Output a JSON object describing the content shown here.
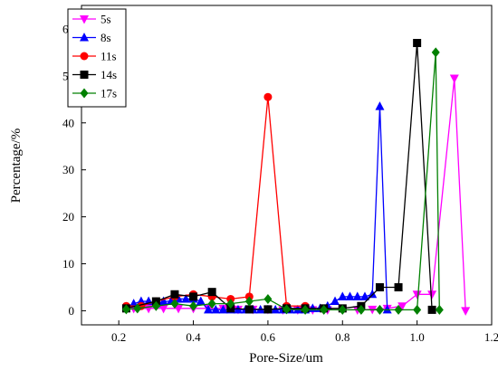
{
  "chart_data": {
    "type": "line",
    "xlabel": "Pore-Size/um",
    "ylabel": "Percentage/%",
    "xlim": [
      0.1,
      1.2
    ],
    "ylim": [
      -3,
      65
    ],
    "xticks": [
      0.2,
      0.4,
      0.6,
      0.8,
      1.0,
      1.2
    ],
    "xtick_labels": [
      "0.2",
      "0.4",
      "0.6",
      "0.8",
      "1.0",
      "1.2"
    ],
    "yticks": [
      0,
      10,
      20,
      30,
      40,
      50,
      60
    ],
    "ytick_labels": [
      "0",
      "10",
      "20",
      "30",
      "40",
      "50",
      "60"
    ],
    "grid": false,
    "legend_position": "top-left",
    "series": [
      {
        "name": "5s",
        "color": "#ff00ff",
        "marker": "triangle-down",
        "x": [
          0.24,
          0.28,
          0.32,
          0.36,
          0.4,
          0.44,
          0.48,
          0.52,
          0.56,
          0.6,
          0.64,
          0.68,
          0.72,
          0.76,
          0.8,
          0.84,
          0.88,
          0.92,
          0.96,
          1.0,
          1.04,
          1.1,
          1.13
        ],
        "y": [
          0.5,
          0.5,
          0.5,
          0.5,
          0.5,
          0.5,
          0.5,
          0.3,
          0.3,
          0.3,
          0.2,
          0.2,
          0.2,
          0.2,
          0.2,
          0.2,
          0.3,
          0.5,
          1.0,
          3.5,
          3.5,
          49.5,
          0
        ]
      },
      {
        "name": "8s",
        "color": "#0000ff",
        "marker": "triangle-up",
        "x": [
          0.24,
          0.26,
          0.28,
          0.3,
          0.32,
          0.34,
          0.36,
          0.38,
          0.4,
          0.42,
          0.44,
          0.46,
          0.48,
          0.5,
          0.52,
          0.54,
          0.56,
          0.58,
          0.6,
          0.62,
          0.64,
          0.66,
          0.68,
          0.7,
          0.72,
          0.74,
          0.76,
          0.78,
          0.8,
          0.82,
          0.84,
          0.86,
          0.88,
          0.9,
          0.92
        ],
        "y": [
          1.5,
          2.0,
          2.0,
          1.5,
          2.0,
          2.0,
          2.5,
          2.5,
          2.5,
          2.0,
          0.2,
          0.2,
          0.2,
          0.2,
          0.2,
          0.2,
          0.2,
          0.2,
          0.2,
          0.2,
          0.2,
          0.2,
          0.2,
          0.2,
          0.5,
          0.5,
          1.0,
          2.0,
          3.0,
          3.0,
          3.0,
          3.0,
          3.5,
          43.5,
          0.2
        ]
      },
      {
        "name": "11s",
        "color": "#ff0000",
        "marker": "circle",
        "x": [
          0.22,
          0.26,
          0.3,
          0.35,
          0.4,
          0.45,
          0.5,
          0.55,
          0.6,
          0.65,
          0.7
        ],
        "y": [
          1.0,
          1.0,
          2.0,
          3.0,
          3.5,
          3.0,
          2.5,
          3.0,
          45.5,
          1.0,
          1.0
        ]
      },
      {
        "name": "14s",
        "color": "#000000",
        "marker": "square",
        "x": [
          0.22,
          0.3,
          0.35,
          0.4,
          0.45,
          0.5,
          0.55,
          0.6,
          0.65,
          0.7,
          0.75,
          0.8,
          0.85,
          0.9,
          0.95,
          1.0,
          1.04
        ],
        "y": [
          0.5,
          2.0,
          3.5,
          3.0,
          4.0,
          0.5,
          0.3,
          0.3,
          0.5,
          0.5,
          0.5,
          0.5,
          1.0,
          5.0,
          5.0,
          57.0,
          0.2
        ]
      },
      {
        "name": "17s",
        "color": "#008000",
        "marker": "diamond",
        "x": [
          0.22,
          0.25,
          0.3,
          0.35,
          0.4,
          0.45,
          0.5,
          0.55,
          0.6,
          0.65,
          0.7,
          0.75,
          0.8,
          0.85,
          0.9,
          0.95,
          1.0,
          1.05,
          1.06
        ],
        "y": [
          0.3,
          0.5,
          1.0,
          1.5,
          1.0,
          1.5,
          1.5,
          2.0,
          2.5,
          0.3,
          0.2,
          0.2,
          0.2,
          0.2,
          0.2,
          0.2,
          0.2,
          55.0,
          0.2
        ]
      }
    ]
  }
}
